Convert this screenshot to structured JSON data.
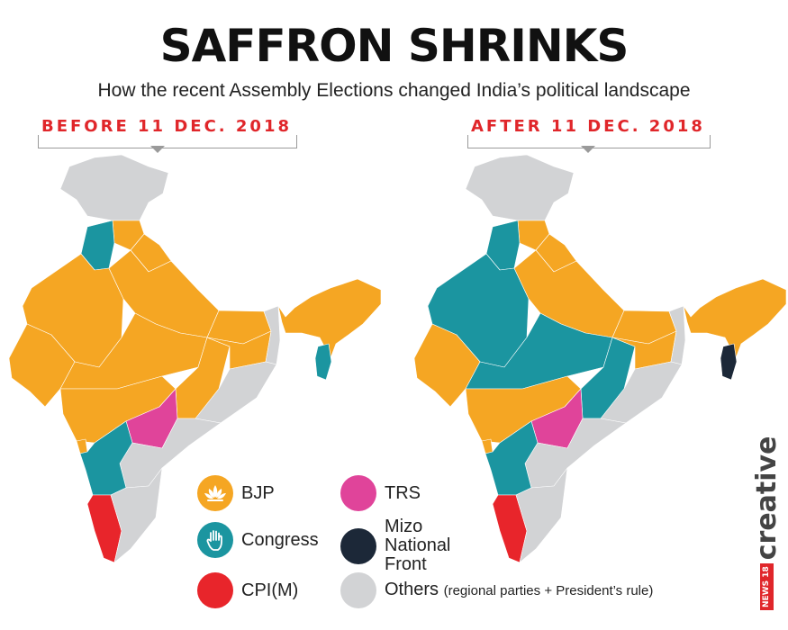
{
  "header": {
    "title": "SAFFRON SHRINKS",
    "subtitle": "How the recent Assembly Elections changed India’s political landscape"
  },
  "maps": {
    "before": {
      "label": "BEFORE 11 DEC. 2018",
      "states": {
        "jammu_kashmir": "Others",
        "himachal": "BJP",
        "punjab": "Congress",
        "uttarakhand": "BJP",
        "rajasthan": "BJP",
        "uttar_pradesh": "BJP",
        "bihar": "BJP",
        "gujarat": "BJP",
        "madhya_pradesh": "BJP",
        "chhattisgarh": "BJP",
        "jharkhand": "BJP",
        "west_bengal": "Others",
        "odisha": "Others",
        "maharashtra": "BJP",
        "telangana": "TRS",
        "andhra_pradesh": "Others",
        "karnataka": "Congress",
        "goa": "BJP",
        "kerala": "CPI(M)",
        "tamil_nadu": "Others",
        "northeast": "BJP",
        "mizoram": "Congress"
      }
    },
    "after": {
      "label": "AFTER 11 DEC. 2018",
      "states": {
        "jammu_kashmir": "Others",
        "himachal": "BJP",
        "punjab": "Congress",
        "uttarakhand": "BJP",
        "rajasthan": "Congress",
        "uttar_pradesh": "BJP",
        "bihar": "BJP",
        "gujarat": "BJP",
        "madhya_pradesh": "Congress",
        "chhattisgarh": "Congress",
        "jharkhand": "BJP",
        "west_bengal": "Others",
        "odisha": "Others",
        "maharashtra": "BJP",
        "telangana": "TRS",
        "andhra_pradesh": "Others",
        "karnataka": "Congress",
        "goa": "BJP",
        "kerala": "CPI(M)",
        "tamil_nadu": "Others",
        "northeast": "BJP",
        "mizoram": "Mizo National Front"
      }
    }
  },
  "legend": {
    "bjp": {
      "label": "BJP",
      "color": "#F5A623",
      "icon": "lotus-icon"
    },
    "congress": {
      "label": "Congress",
      "color": "#1B95A0",
      "icon": "hand-icon"
    },
    "cpim": {
      "label": "CPI(M)",
      "color": "#E8252B"
    },
    "trs": {
      "label": "TRS",
      "color": "#E0449A"
    },
    "mnf": {
      "label": "Mizo\nNational\nFront",
      "color": "#1C2838"
    },
    "others": {
      "label": "Others",
      "note": "(regional parties + President’s rule)",
      "color": "#D2D3D5"
    }
  },
  "brand": {
    "badge": "NEWS 18",
    "text": "creative"
  }
}
